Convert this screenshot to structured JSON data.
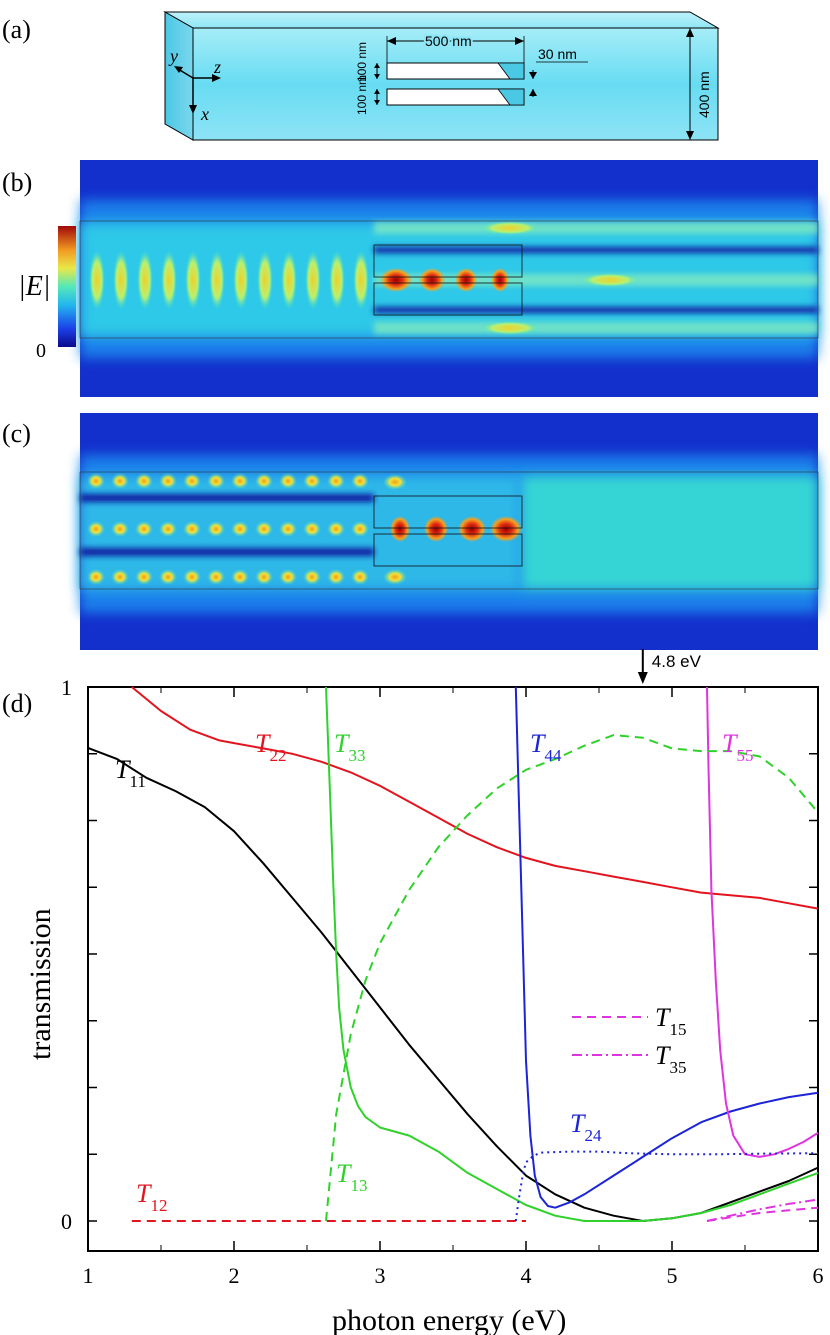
{
  "panel_labels": [
    "(a)",
    "(b)",
    "(c)",
    "(d)"
  ],
  "panel_a": {
    "dimensions": {
      "length": "500 nm",
      "gap": "30 nm",
      "width1": "100 nm",
      "width2": "100 nm",
      "height": "400 nm"
    },
    "axes": {
      "y": "y",
      "z": "z",
      "x": "x"
    }
  },
  "panel_b": {
    "colorbar": {
      "label": "|E|",
      "min": "0"
    },
    "colors": {
      "low": "#1b24c8",
      "mid": "#25d0d0",
      "high": "#c81010"
    }
  },
  "annotation": {
    "text": "4.8 eV",
    "x": 4.8
  },
  "chart_data": {
    "type": "line",
    "xlabel": "photon energy (eV)",
    "ylabel": "transmission",
    "xlim": [
      1,
      6
    ],
    "ylim": [
      0,
      1
    ],
    "xticks": [
      "1",
      "2",
      "3",
      "4",
      "5",
      "6"
    ],
    "yticks": [
      "0",
      "1"
    ],
    "series": [
      {
        "name": "T11",
        "label": "T",
        "sub": "11",
        "color": "#000000",
        "dash": "solid",
        "x": [
          1.0,
          1.2,
          1.4,
          1.6,
          1.8,
          2.0,
          2.2,
          2.4,
          2.6,
          2.8,
          3.0,
          3.2,
          3.4,
          3.6,
          3.8,
          4.0,
          4.2,
          4.4,
          4.6,
          4.8,
          5.0,
          5.2,
          5.4,
          5.6,
          5.8,
          6.0
        ],
        "y": [
          0.886,
          0.865,
          0.83,
          0.805,
          0.775,
          0.73,
          0.67,
          0.605,
          0.54,
          0.47,
          0.4,
          0.33,
          0.265,
          0.2,
          0.14,
          0.085,
          0.05,
          0.025,
          0.01,
          0.0,
          0.005,
          0.015,
          0.035,
          0.055,
          0.075,
          0.1
        ]
      },
      {
        "name": "T22",
        "label": "T",
        "sub": "22",
        "color": "#e3141e",
        "dash": "solid",
        "x": [
          1.3,
          1.5,
          1.7,
          1.9,
          2.0,
          2.2,
          2.4,
          2.6,
          2.8,
          3.0,
          3.2,
          3.4,
          3.6,
          3.8,
          4.0,
          4.2,
          4.4,
          4.6,
          4.8,
          5.0,
          5.2,
          5.4,
          5.6,
          5.8,
          6.0
        ],
        "y": [
          1.0,
          0.955,
          0.92,
          0.9,
          0.895,
          0.885,
          0.875,
          0.86,
          0.84,
          0.815,
          0.785,
          0.755,
          0.725,
          0.7,
          0.68,
          0.665,
          0.655,
          0.645,
          0.635,
          0.625,
          0.615,
          0.61,
          0.605,
          0.595,
          0.585
        ]
      },
      {
        "name": "T33",
        "label": "T",
        "sub": "33",
        "color": "#2fd22a",
        "dash": "solid",
        "x": [
          2.63,
          2.64,
          2.66,
          2.68,
          2.7,
          2.72,
          2.75,
          2.8,
          2.85,
          2.9,
          3.0,
          3.2,
          3.4,
          3.6,
          3.8,
          4.0,
          4.2,
          4.4,
          4.6,
          4.8,
          5.0,
          5.2,
          5.4,
          5.6,
          5.8,
          6.0
        ],
        "y": [
          1.0,
          0.93,
          0.78,
          0.63,
          0.5,
          0.4,
          0.32,
          0.25,
          0.215,
          0.195,
          0.175,
          0.16,
          0.13,
          0.09,
          0.06,
          0.03,
          0.01,
          0.0,
          0.0,
          0.0,
          0.005,
          0.015,
          0.03,
          0.05,
          0.07,
          0.09
        ]
      },
      {
        "name": "T44",
        "label": "T",
        "sub": "44",
        "color": "#1c24d8",
        "dash": "solid",
        "x": [
          3.93,
          3.95,
          3.98,
          4.0,
          4.03,
          4.06,
          4.1,
          4.15,
          4.2,
          4.3,
          4.4,
          4.6,
          4.8,
          5.0,
          5.2,
          5.4,
          5.6,
          5.8,
          6.0
        ],
        "y": [
          1.0,
          0.8,
          0.5,
          0.3,
          0.16,
          0.085,
          0.045,
          0.028,
          0.025,
          0.035,
          0.05,
          0.085,
          0.12,
          0.155,
          0.185,
          0.205,
          0.22,
          0.232,
          0.24
        ]
      },
      {
        "name": "T55",
        "label": "T",
        "sub": "55",
        "color": "#e033e0",
        "dash": "solid",
        "x": [
          5.24,
          5.25,
          5.27,
          5.3,
          5.33,
          5.37,
          5.42,
          5.5,
          5.6,
          5.7,
          5.8,
          5.9,
          6.0
        ],
        "y": [
          1.0,
          0.85,
          0.62,
          0.45,
          0.32,
          0.22,
          0.16,
          0.125,
          0.12,
          0.125,
          0.135,
          0.148,
          0.165
        ]
      },
      {
        "name": "T12",
        "label": "T",
        "sub": "12",
        "color": "#e3141e",
        "dash": "dashed",
        "x": [
          1.3,
          4.0
        ],
        "y": [
          0.0,
          0.0
        ]
      },
      {
        "name": "T13",
        "label": "T",
        "sub": "13",
        "color": "#2fd22a",
        "dash": "dashed",
        "x": [
          2.63,
          2.7,
          2.8,
          2.9,
          3.0,
          3.2,
          3.4,
          3.6,
          3.8,
          4.0,
          4.2,
          4.4,
          4.6,
          4.8,
          5.0,
          5.2,
          5.4,
          5.6,
          5.8,
          6.0
        ],
        "y": [
          0.0,
          0.2,
          0.35,
          0.45,
          0.52,
          0.62,
          0.7,
          0.76,
          0.81,
          0.845,
          0.865,
          0.89,
          0.91,
          0.905,
          0.885,
          0.88,
          0.88,
          0.87,
          0.83,
          0.765
        ]
      },
      {
        "name": "T24",
        "label": "T",
        "sub": "24",
        "color": "#1c24d8",
        "dash": "dotted",
        "x": [
          3.93,
          3.95,
          3.98,
          4.0,
          4.05,
          4.1,
          4.3,
          4.5,
          4.7,
          5.0,
          5.3,
          5.6,
          6.0
        ],
        "y": [
          0.0,
          0.04,
          0.09,
          0.11,
          0.122,
          0.128,
          0.13,
          0.13,
          0.127,
          0.125,
          0.125,
          0.126,
          0.127
        ]
      },
      {
        "name": "T15",
        "label": "T",
        "sub": "15",
        "color": "#e033e0",
        "dash": "dashed",
        "x": [
          5.24,
          5.4,
          5.6,
          5.8,
          6.0
        ],
        "y": [
          0.0,
          0.007,
          0.015,
          0.02,
          0.025
        ]
      },
      {
        "name": "T35",
        "label": "T",
        "sub": "35",
        "color": "#e033e0",
        "dash": "dashdot",
        "x": [
          5.24,
          5.4,
          5.6,
          5.8,
          6.0
        ],
        "y": [
          0.0,
          0.01,
          0.022,
          0.032,
          0.04
        ]
      }
    ],
    "legend": {
      "position": "right-middle",
      "items": [
        {
          "label": "T",
          "sub": "15",
          "color": "#e033e0",
          "dash": "dashed"
        },
        {
          "label": "T",
          "sub": "35",
          "color": "#e033e0",
          "dash": "dashdot"
        }
      ]
    }
  }
}
